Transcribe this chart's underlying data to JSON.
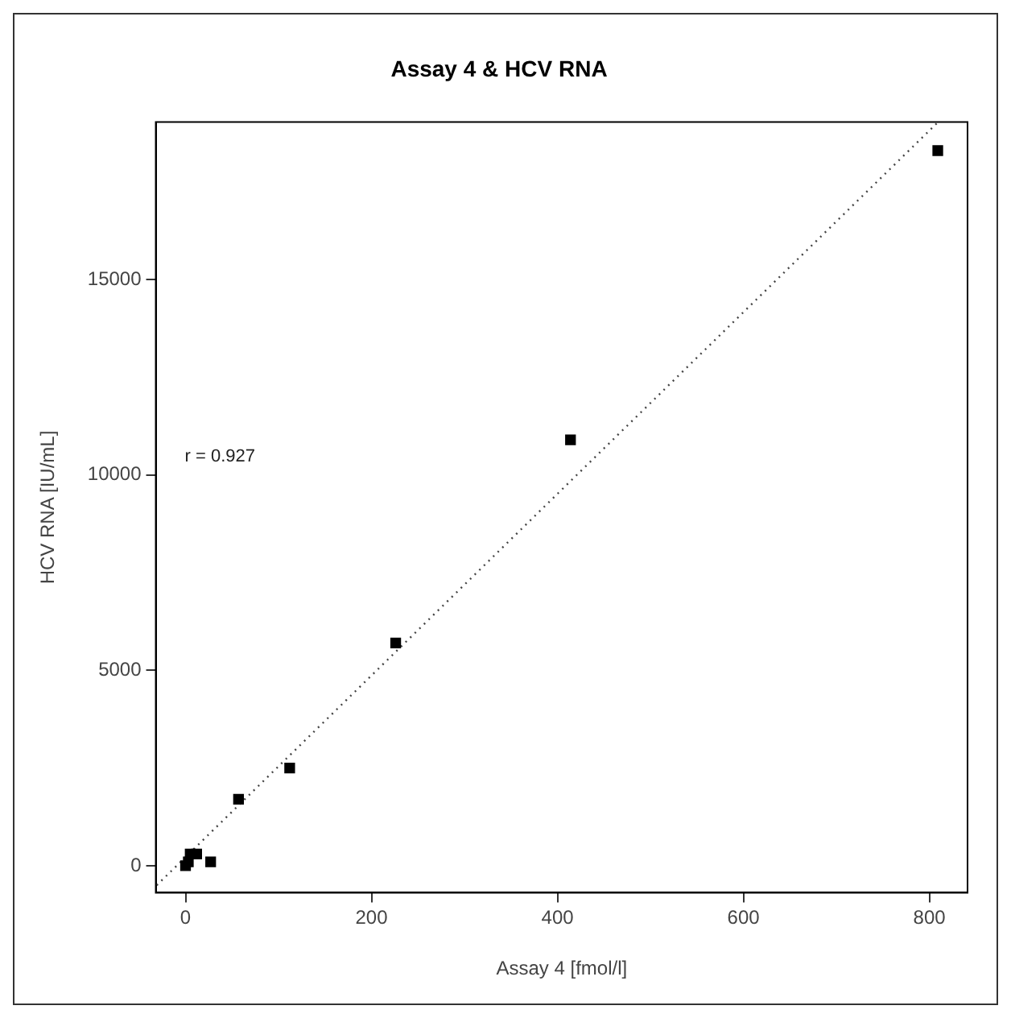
{
  "chart_data": {
    "type": "scatter",
    "title": "Assay 4 & HCV RNA",
    "xlabel": "Assay 4 [fmol/l]",
    "ylabel": "HCV RNA [IU/mL]",
    "annotations": [
      "r = 0.927"
    ],
    "series": [
      {
        "type": "scatter",
        "color": "#000000",
        "marker": "square",
        "x": [
          0,
          3,
          5,
          12,
          27,
          57,
          112,
          226,
          414,
          809
        ],
        "values": [
          0,
          100,
          300,
          300,
          100,
          1700,
          2500,
          5700,
          10900,
          18300
        ]
      },
      {
        "type": "line",
        "color": "#444444",
        "line_style": "dotted",
        "x": [
          -31,
          808
        ],
        "values": [
          -500,
          19000
        ]
      }
    ],
    "xlim": [
      -32,
      841
    ],
    "ylim": [
      -690,
      19030
    ],
    "xticks": [
      0,
      200,
      400,
      600,
      800
    ],
    "yticks": [
      0,
      5000,
      10000,
      15000
    ],
    "grid": false,
    "legend": false
  }
}
